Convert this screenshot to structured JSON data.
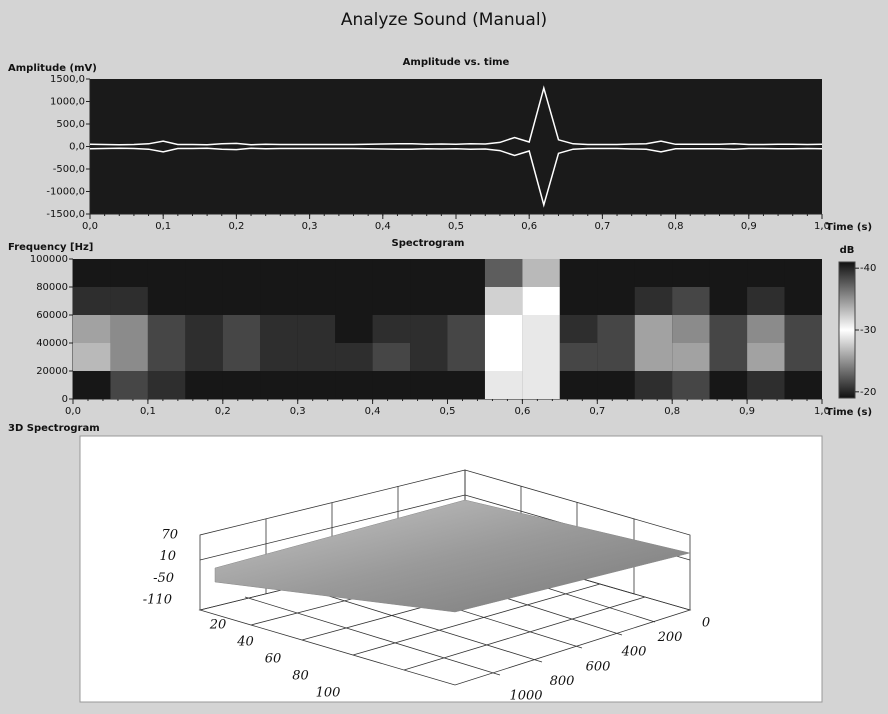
{
  "window": {
    "title": "Analyze Sound (Manual)"
  },
  "chart_data": [
    {
      "type": "line",
      "title": "Amplitude vs. time",
      "y_label": "Amplitude (mV)",
      "x_label": "Time (s)",
      "x": [
        0,
        0.02,
        0.04,
        0.06,
        0.08,
        0.1,
        0.12,
        0.14,
        0.16,
        0.18,
        0.2,
        0.22,
        0.24,
        0.26,
        0.28,
        0.3,
        0.32,
        0.34,
        0.36,
        0.38,
        0.4,
        0.42,
        0.44,
        0.46,
        0.48,
        0.5,
        0.52,
        0.54,
        0.56,
        0.58,
        0.6,
        0.62,
        0.64,
        0.66,
        0.68,
        0.7,
        0.72,
        0.74,
        0.76,
        0.78,
        0.8,
        0.82,
        0.84,
        0.86,
        0.88,
        0.9,
        0.92,
        0.94,
        0.96,
        0.98,
        1
      ],
      "series": [
        {
          "color": "#ffffff",
          "values": [
            50,
            45,
            40,
            45,
            60,
            120,
            45,
            45,
            40,
            60,
            70,
            40,
            50,
            45,
            45,
            45,
            45,
            45,
            45,
            50,
            55,
            60,
            60,
            50,
            55,
            50,
            60,
            55,
            90,
            200,
            100,
            1300,
            150,
            60,
            45,
            45,
            45,
            55,
            60,
            120,
            50,
            50,
            50,
            50,
            60,
            45,
            45,
            50,
            50,
            45,
            50
          ]
        }
      ],
      "xlim": [
        0,
        1
      ],
      "ylim": [
        -1500,
        1500
      ],
      "xticks": [
        {
          "value": 0,
          "label": "0,0"
        },
        {
          "value": 0.1,
          "label": "0,1"
        },
        {
          "value": 0.2,
          "label": "0,2"
        },
        {
          "value": 0.3,
          "label": "0,3"
        },
        {
          "value": 0.4,
          "label": "0,4"
        },
        {
          "value": 0.5,
          "label": "0,5"
        },
        {
          "value": 0.6,
          "label": "0,6"
        },
        {
          "value": 0.7,
          "label": "0,7"
        },
        {
          "value": 0.8,
          "label": "0,8"
        },
        {
          "value": 0.9,
          "label": "0,9"
        },
        {
          "value": 1,
          "label": "1,0"
        }
      ],
      "yticks": [
        {
          "value": 1500,
          "label": "1500,0"
        },
        {
          "value": 1000,
          "label": "1000,0"
        },
        {
          "value": 500,
          "label": "500,0"
        },
        {
          "value": 0,
          "label": "0,0"
        },
        {
          "value": -500,
          "label": "-500,0"
        },
        {
          "value": -1000,
          "label": "-1000,0"
        },
        {
          "value": -1500,
          "label": "-1500,0"
        }
      ]
    },
    {
      "type": "heatmap",
      "title": "Spectrogram",
      "y_label": "Frequency [Hz]",
      "x_label": "Time (s)",
      "x_edges": [
        0,
        0.05,
        0.1,
        0.15,
        0.2,
        0.25,
        0.3,
        0.35,
        0.4,
        0.45,
        0.5,
        0.55,
        0.6,
        0.65,
        0.7,
        0.75,
        0.8,
        0.85,
        0.9,
        0.95,
        1
      ],
      "y_edges": [
        0,
        20000,
        40000,
        60000,
        80000,
        100000
      ],
      "z": [
        [
          -20,
          -22,
          -21,
          -20,
          -20,
          -20,
          -20,
          -20,
          -20,
          -20,
          -20,
          -29,
          -31,
          -20,
          -20,
          -21,
          -22,
          -20,
          -21,
          -20
        ],
        [
          -27,
          -25,
          -22,
          -21,
          -22,
          -21,
          -21,
          -21,
          -22,
          -21,
          -22,
          -30,
          -31,
          -22,
          -22,
          -26,
          -26,
          -22,
          -26,
          -22
        ],
        [
          -26,
          -25,
          -22,
          -21,
          -22,
          -21,
          -21,
          -20,
          -21,
          -21,
          -22,
          -30,
          -31,
          -21,
          -22,
          -26,
          -25,
          -22,
          -25,
          -22
        ],
        [
          -21,
          -21,
          -20,
          -20,
          -20,
          -20,
          -20,
          -20,
          -20,
          -20,
          -20,
          -28,
          -30,
          -20,
          -20,
          -21,
          -22,
          -20,
          -21,
          -20
        ],
        [
          -20,
          -20,
          -20,
          -20,
          -20,
          -20,
          -20,
          -20,
          -20,
          -20,
          -20,
          -23,
          -27,
          -20,
          -20,
          -20,
          -20,
          -20,
          -20,
          -20
        ]
      ],
      "xlim": [
        0,
        1
      ],
      "ylim": [
        0,
        100000
      ],
      "xticks": [
        {
          "value": 0,
          "label": "0,0"
        },
        {
          "value": 0.1,
          "label": "0,1"
        },
        {
          "value": 0.2,
          "label": "0,2"
        },
        {
          "value": 0.3,
          "label": "0,3"
        },
        {
          "value": 0.4,
          "label": "0,4"
        },
        {
          "value": 0.5,
          "label": "0,5"
        },
        {
          "value": 0.6,
          "label": "0,6"
        },
        {
          "value": 0.7,
          "label": "0,7"
        },
        {
          "value": 0.8,
          "label": "0,8"
        },
        {
          "value": 0.9,
          "label": "0,9"
        },
        {
          "value": 1,
          "label": "1,0"
        }
      ],
      "yticks": [
        0,
        20000,
        40000,
        60000,
        80000,
        100000
      ],
      "colorbar": {
        "label": "dB",
        "zlim": [
          -41,
          -19
        ],
        "ticks": [
          -40,
          -30,
          -20
        ]
      }
    },
    {
      "type": "surface",
      "title": "3D Spectrogram",
      "zticks": [
        70,
        10,
        -50,
        -110
      ],
      "zlim": [
        70,
        -110
      ],
      "yticks": [
        20,
        40,
        60,
        80,
        100
      ],
      "ylim": [
        20,
        100
      ],
      "xticks": [
        0,
        200,
        400,
        600,
        800,
        1000
      ],
      "xlim": [
        0,
        1000
      ]
    }
  ]
}
